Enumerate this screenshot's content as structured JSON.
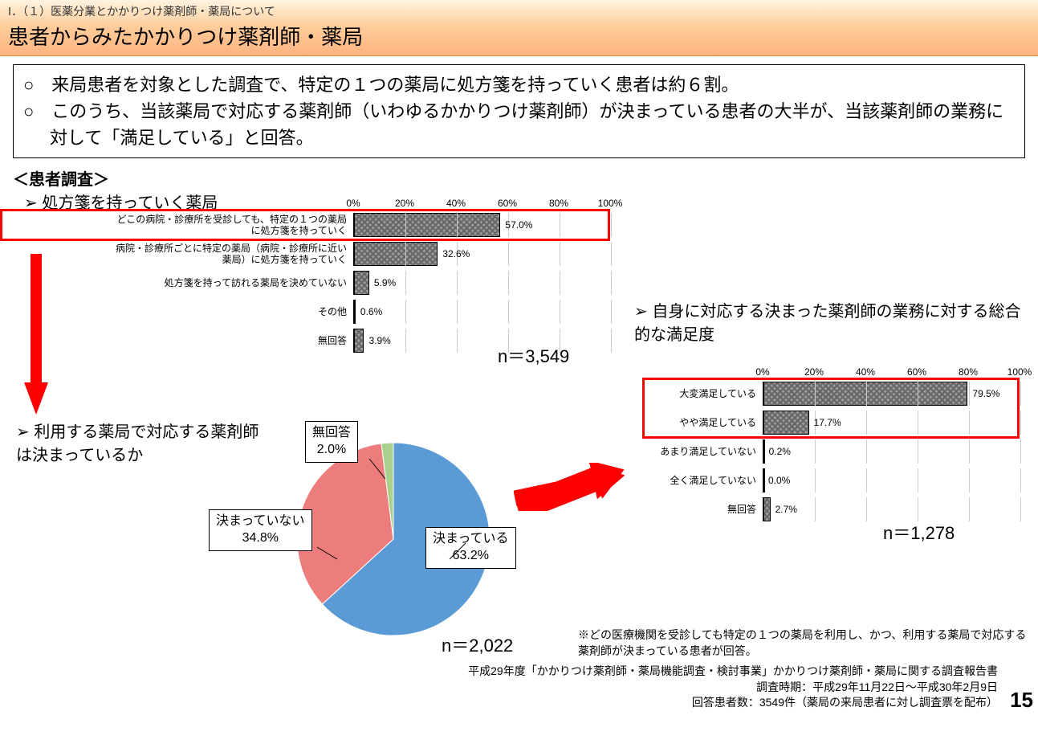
{
  "header": {
    "breadcrumb": "Ⅰ．（１）医薬分業とかかりつけ薬剤師・薬局について",
    "title": "患者からみたかかりつけ薬剤師・薬局"
  },
  "summary": {
    "items": [
      "来局患者を対象とした調査で、特定の１つの薬局に処方箋を持っていく患者は約６割。",
      "このうち、当該薬局で対応する薬剤師（いわゆるかかりつけ薬剤師）が決まっている患者の大半が、当該薬剤師の業務に対して「満足している」と回答。"
    ]
  },
  "survey_label": "＜患者調査＞",
  "chart1": {
    "title": "処方箋を持っていく薬局",
    "type": "bar",
    "axis_ticks": [
      "0%",
      "20%",
      "40%",
      "60%",
      "80%",
      "100%"
    ],
    "cat_width": 300,
    "track_width": 320,
    "bars": [
      {
        "label": "どこの病院・診療所を受診しても、特定の１つの薬局に処方箋を持っていく",
        "value": 57.0,
        "display": "57.0%",
        "highlight": true
      },
      {
        "label": "病院・診療所ごとに特定の薬局（病院・診療所に近い薬局）に処方箋を持っていく",
        "value": 32.6,
        "display": "32.6%"
      },
      {
        "label": "処方箋を持って訪れる薬局を決めていない",
        "value": 5.9,
        "display": "5.9%"
      },
      {
        "label": "その他",
        "value": 0.6,
        "display": "0.6%"
      },
      {
        "label": "無回答",
        "value": 3.9,
        "display": "3.9%"
      }
    ],
    "n": "n＝3,549"
  },
  "chart2": {
    "title": "利用する薬局で対応する薬剤師は決まっているか",
    "type": "pie",
    "slices": [
      {
        "label": "決まっている",
        "value": 63.2,
        "display": "63.2%",
        "color": "#5b9bd5"
      },
      {
        "label": "決まっていない",
        "value": 34.8,
        "display": "34.8%",
        "color": "#ed7d7d"
      },
      {
        "label": "無回答",
        "value": 2.0,
        "display": "2.0%",
        "color": "#a9d18e"
      }
    ],
    "n": "n＝2,022"
  },
  "chart3": {
    "title": "自身に対応する決まった薬剤師の業務に対する総合的な満足度",
    "type": "bar",
    "axis_ticks": [
      "0%",
      "20%",
      "40%",
      "60%",
      "80%",
      "100%"
    ],
    "cat_width": 150,
    "track_width": 320,
    "bars": [
      {
        "label": "大変満足している",
        "value": 79.5,
        "display": "79.5%",
        "highlight": true
      },
      {
        "label": "やや満足している",
        "value": 17.7,
        "display": "17.7%",
        "highlight": true
      },
      {
        "label": "あまり満足していない",
        "value": 0.2,
        "display": "0.2%"
      },
      {
        "label": "全く満足していない",
        "value": 0.0,
        "display": "0.0%"
      },
      {
        "label": "無回答",
        "value": 2.7,
        "display": "2.7%"
      }
    ],
    "n": "n＝1,278",
    "footnote": "※どの医療機関を受診しても特定の１つの薬局を利用し、かつ、利用する薬局で対応する薬剤師が決まっている患者が回答。"
  },
  "source": {
    "lines": [
      "平成29年度「かかりつけ薬剤師・薬局機能調査・検討事業」かかりつけ薬剤師・薬局に関する調査報告書",
      "調査時期：平成29年11月22日～平成30年2月9日",
      "回答患者数：3549件（薬局の来局患者に対し調査票を配布）"
    ]
  },
  "page_num": "15"
}
